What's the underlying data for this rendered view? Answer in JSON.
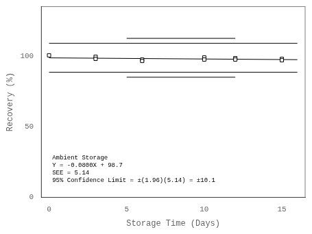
{
  "chart_data": {
    "type": "scatter",
    "xlabel": "Storage Time (Days)",
    "ylabel": "Recovery (%)",
    "xlim": [
      -0.5,
      16.5
    ],
    "ylim": [
      0,
      135
    ],
    "xticks": [
      0,
      5,
      10,
      15
    ],
    "yticks": [
      0,
      50,
      100
    ],
    "grid": false,
    "annotations": [
      {
        "text": "Ambient Storage\nY = -0.0800X + 98.7\nSEE = 5.14\n95% Confidence Limit = ±(1.96)(5.14) = ±10.1",
        "color": "#000000"
      }
    ],
    "series": [
      {
        "type": "line",
        "color": "#000000",
        "line_style": "solid",
        "x": [
          0,
          16
        ],
        "values": [
          98.7,
          97.42
        ]
      },
      {
        "type": "line",
        "color": "#000000",
        "line_style": "solid",
        "x": [
          0,
          16
        ],
        "values": [
          109.0,
          109.0
        ]
      },
      {
        "type": "line",
        "color": "#000000",
        "line_style": "solid",
        "x": [
          5,
          12
        ],
        "values": [
          112.5,
          112.5
        ]
      },
      {
        "type": "line",
        "color": "#000000",
        "line_style": "solid",
        "x": [
          0,
          16
        ],
        "values": [
          88.5,
          88.5
        ]
      },
      {
        "type": "line",
        "color": "#000000",
        "line_style": "solid",
        "x": [
          5,
          12
        ],
        "values": [
          85.0,
          85.0
        ]
      },
      {
        "type": "scatter",
        "color": "#000000",
        "marker": "square",
        "x": [
          0,
          3,
          3,
          6,
          6,
          10,
          10,
          12,
          12,
          15,
          15
        ],
        "values": [
          100.5,
          99.5,
          98.0,
          97.5,
          96.5,
          99.0,
          97.5,
          98.5,
          97.5,
          98.0,
          97.0
        ]
      }
    ]
  }
}
